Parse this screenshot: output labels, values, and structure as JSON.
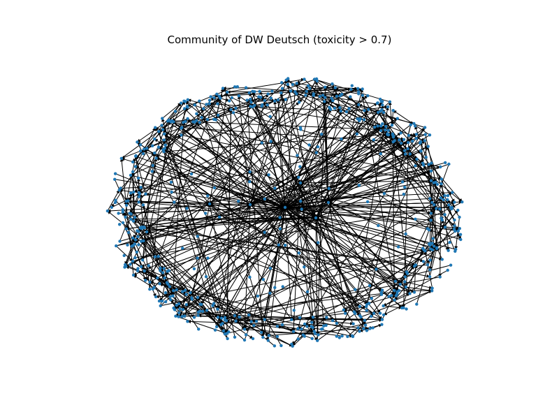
{
  "figure": {
    "title": "Community of DW Deutsch (toxicity > 0.7)"
  },
  "graph": {
    "node_color": "#1f77b4",
    "edge_color": "#000000",
    "directed": true,
    "layout": "dense ring of peripheral nodes with a few central hubs"
  }
}
